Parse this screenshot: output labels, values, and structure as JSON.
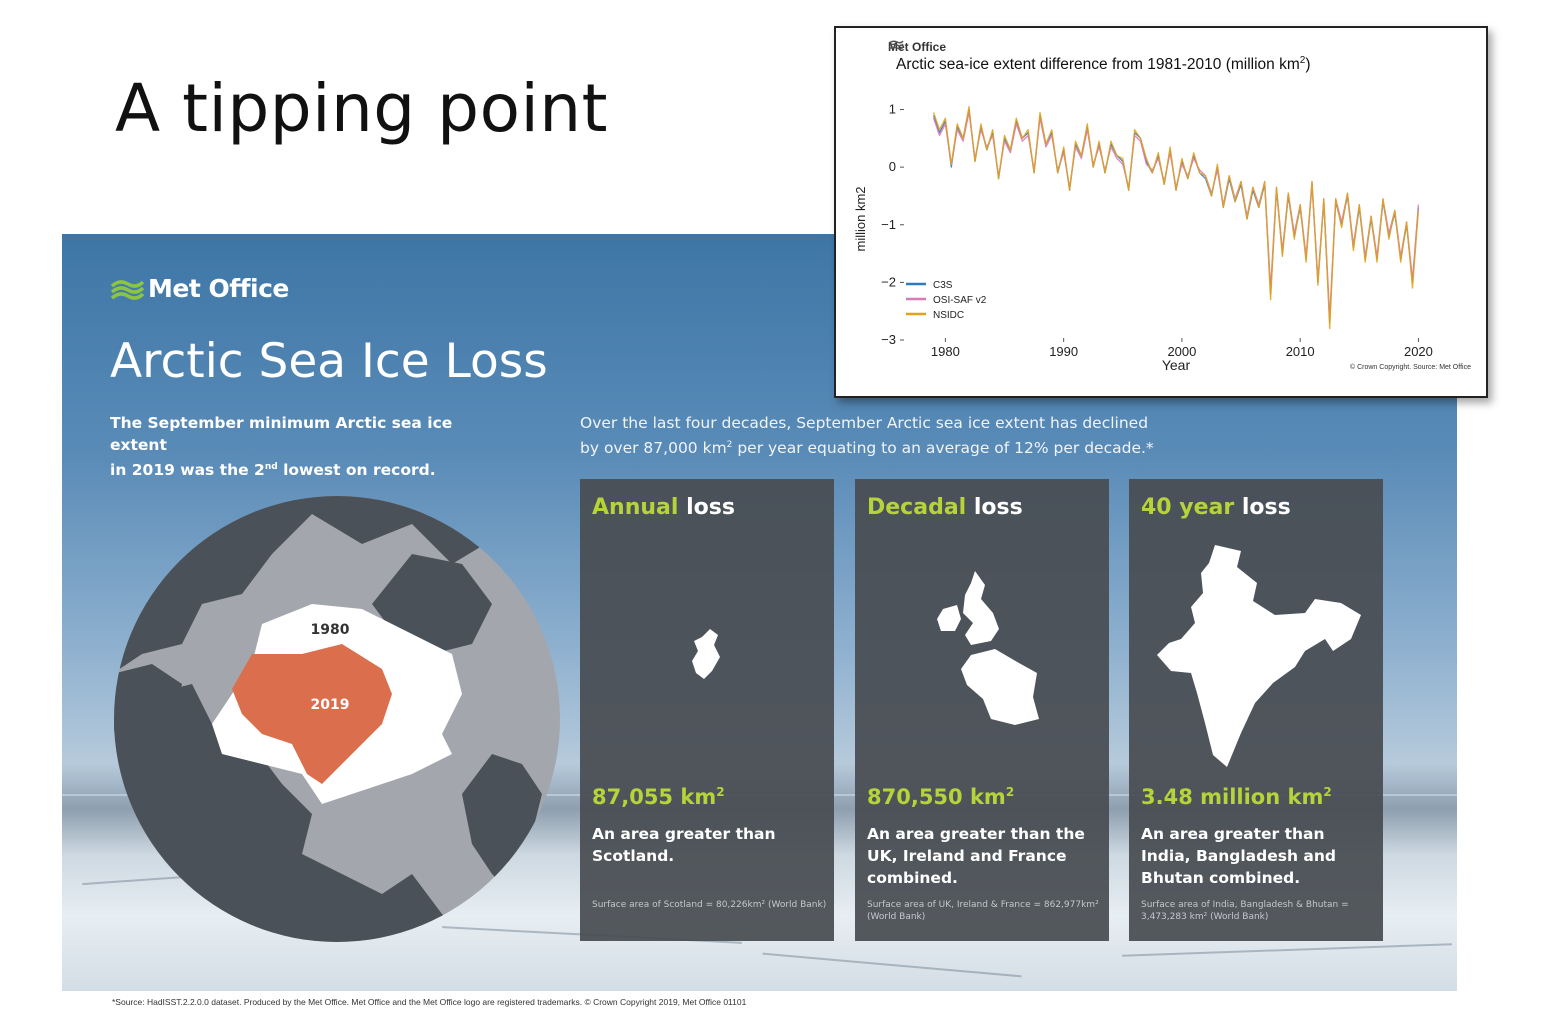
{
  "slide": {
    "title": "A tipping point"
  },
  "poster": {
    "logo_text": "Met Office",
    "title": "Arctic Sea Ice Loss",
    "lead_left_1": "The September minimum Arctic sea ice extent",
    "lead_left_2": "in 2019 was the 2",
    "lead_left_sup": "nd",
    "lead_left_3": " lowest on record.",
    "lead_right_1": "Over the last four decades, September Arctic sea ice extent has declined",
    "lead_right_2": "by over 87,000 km",
    "lead_right_sup": "2",
    "lead_right_3": " per year equating to an average of 12% per decade.*",
    "map": {
      "label_1980": "1980",
      "label_2019": "2019"
    },
    "cards": [
      {
        "head_hl": "Annual",
        "head_rest": " loss",
        "value": "87,055 km",
        "value_sup": "2",
        "desc": "An area greater than Scotland.",
        "note": "Surface area of Scotland = 80,226km² (World Bank)"
      },
      {
        "head_hl": "Decadal",
        "head_rest": " loss",
        "value": "870,550 km",
        "value_sup": "2",
        "desc": "An area greater than the UK, Ireland and France combined.",
        "note": "Surface area of UK, Ireland & France = 862,977km² (World Bank)"
      },
      {
        "head_hl": "40 year",
        "head_rest": " loss",
        "value": "3.48 million km",
        "value_sup": "2",
        "desc": "An area greater than India, Bangladesh and Bhutan combined.",
        "note": "Surface area of India, Bangladesh & Bhutan = 3,473,283 km² (World Bank)"
      }
    ],
    "footnote": "*Source: HadISST.2.2.0.0 dataset. Produced by the Met Office. Met Office and the Met Office logo are registered trademarks. © Crown Copyright 2019, Met Office  01101"
  },
  "chart_box": {
    "logo_text": "Met Office",
    "title": "Arctic sea-ice extent difference from 1981-2010 (million km",
    "title_sup": "2",
    "title_end": ")",
    "credit": "© Crown Copyright. Source: Met Office"
  },
  "chart_data": {
    "type": "line",
    "title": "Arctic sea-ice extent difference from 1981-2010 (million km2)",
    "xlabel": "Year",
    "ylabel": "million km2",
    "xlim": [
      1976.5,
      2022.5
    ],
    "ylim": [
      -3,
      1.2
    ],
    "xticks": [
      1980,
      1990,
      2000,
      2010,
      2020
    ],
    "yticks": [
      1,
      0,
      -1,
      -2,
      -3
    ],
    "ytick_labels": [
      "1",
      "0",
      "−1",
      "−2",
      "−3"
    ],
    "legend_position": "lower-left",
    "series": [
      {
        "name": "C3S",
        "color": "#2f7bbf",
        "x": [
          1979.0,
          1979.5,
          1980.0,
          1980.5,
          1981.0,
          1981.5,
          1982.0,
          1982.5,
          1983.0,
          1983.5,
          1984.0,
          1984.5,
          1985.0,
          1985.5,
          1986.0,
          1986.5,
          1987.0,
          1987.5,
          1988.0,
          1988.5,
          1989.0,
          1989.5,
          1990.0,
          1990.5,
          1991.0,
          1991.5,
          1992.0,
          1992.5,
          1993.0,
          1993.5,
          1994.0,
          1994.5,
          1995.0,
          1995.5,
          1996.0,
          1996.5,
          1997.0,
          1997.5,
          1998.0,
          1998.5,
          1999.0,
          1999.5,
          2000.0,
          2000.5,
          2001.0,
          2001.5,
          2002.0,
          2002.5,
          2003.0,
          2003.5,
          2004.0,
          2004.5,
          2005.0,
          2005.5,
          2006.0,
          2006.5,
          2007.0,
          2007.5,
          2008.0,
          2008.5,
          2009.0,
          2009.5,
          2010.0,
          2010.5,
          2011.0,
          2011.5,
          2012.0,
          2012.5,
          2013.0,
          2013.5,
          2014.0,
          2014.5,
          2015.0,
          2015.5,
          2016.0,
          2016.5,
          2017.0,
          2017.5,
          2018.0,
          2018.5,
          2019.0,
          2019.5,
          2020.0
        ],
        "y": [
          0.9,
          0.6,
          0.8,
          0.0,
          0.7,
          0.5,
          1.0,
          0.1,
          0.7,
          0.3,
          0.6,
          -0.2,
          0.5,
          0.3,
          0.8,
          0.5,
          0.6,
          -0.1,
          0.9,
          0.4,
          0.6,
          -0.1,
          0.3,
          -0.4,
          0.4,
          0.2,
          0.7,
          0.0,
          0.4,
          -0.1,
          0.4,
          0.2,
          0.1,
          -0.4,
          0.6,
          0.5,
          0.1,
          -0.1,
          0.2,
          -0.3,
          0.3,
          -0.4,
          0.1,
          -0.2,
          0.2,
          -0.1,
          -0.2,
          -0.5,
          0.0,
          -0.7,
          -0.2,
          -0.6,
          -0.3,
          -0.9,
          -0.4,
          -0.7,
          -0.3,
          -2.2,
          -0.4,
          -1.5,
          -0.5,
          -1.2,
          -0.7,
          -1.6,
          -0.3,
          -2.0,
          -0.6,
          -2.7,
          -0.6,
          -1.0,
          -0.5,
          -1.4,
          -0.7,
          -1.6,
          -0.9,
          -1.6,
          -0.6,
          -1.2,
          -0.8,
          -1.6,
          -1.0,
          -2.0,
          -0.7
        ]
      },
      {
        "name": "OSI-SAF v2",
        "color": "#d67bb5",
        "x": [
          1979.0,
          1979.5,
          1980.0,
          1980.5,
          1981.0,
          1981.5,
          1982.0,
          1982.5,
          1983.0,
          1983.5,
          1984.0,
          1984.5,
          1985.0,
          1985.5,
          1986.0,
          1986.5,
          1987.0,
          1987.5,
          1988.0,
          1988.5,
          1989.0,
          1989.5,
          1990.0,
          1990.5,
          1991.0,
          1991.5,
          1992.0,
          1992.5,
          1993.0,
          1993.5,
          1994.0,
          1994.5,
          1995.0,
          1995.5,
          1996.0,
          1996.5,
          1997.0,
          1997.5,
          1998.0,
          1998.5,
          1999.0,
          1999.5,
          2000.0,
          2000.5,
          2001.0,
          2001.5,
          2002.0,
          2002.5,
          2003.0,
          2003.5,
          2004.0,
          2004.5,
          2005.0,
          2005.5,
          2006.0,
          2006.5,
          2007.0,
          2007.5,
          2008.0,
          2008.5,
          2009.0,
          2009.5,
          2010.0,
          2010.5,
          2011.0,
          2011.5,
          2012.0,
          2012.5,
          2013.0,
          2013.5,
          2014.0,
          2014.5,
          2015.0,
          2015.5,
          2016.0,
          2016.5,
          2017.0,
          2017.5,
          2018.0,
          2018.5,
          2019.0,
          2019.5,
          2020.0
        ],
        "y": [
          0.85,
          0.55,
          0.75,
          0.05,
          0.65,
          0.45,
          0.95,
          0.15,
          0.65,
          0.35,
          0.55,
          -0.15,
          0.45,
          0.25,
          0.75,
          0.45,
          0.55,
          -0.05,
          0.85,
          0.35,
          0.55,
          -0.05,
          0.25,
          -0.35,
          0.35,
          0.15,
          0.65,
          0.05,
          0.35,
          -0.05,
          0.35,
          0.15,
          0.05,
          -0.35,
          0.55,
          0.45,
          0.05,
          -0.05,
          0.15,
          -0.25,
          0.25,
          -0.35,
          0.05,
          -0.15,
          0.15,
          -0.05,
          -0.15,
          -0.45,
          -0.05,
          -0.65,
          -0.15,
          -0.55,
          -0.25,
          -0.85,
          -0.35,
          -0.65,
          -0.25,
          -2.1,
          -0.35,
          -1.45,
          -0.45,
          -1.15,
          -0.65,
          -1.55,
          -0.25,
          -1.95,
          -0.55,
          -2.6,
          -0.55,
          -0.95,
          -0.45,
          -1.35,
          -0.65,
          -1.55,
          -0.85,
          -1.55,
          -0.55,
          -1.15,
          -0.75,
          -1.55,
          -0.95,
          -1.95,
          -0.65
        ]
      },
      {
        "name": "NSIDC",
        "color": "#e3a21c",
        "x": [
          1979.0,
          1979.5,
          1980.0,
          1980.5,
          1981.0,
          1981.5,
          1982.0,
          1982.5,
          1983.0,
          1983.5,
          1984.0,
          1984.5,
          1985.0,
          1985.5,
          1986.0,
          1986.5,
          1987.0,
          1987.5,
          1988.0,
          1988.5,
          1989.0,
          1989.5,
          1990.0,
          1990.5,
          1991.0,
          1991.5,
          1992.0,
          1992.5,
          1993.0,
          1993.5,
          1994.0,
          1994.5,
          1995.0,
          1995.5,
          1996.0,
          1996.5,
          1997.0,
          1997.5,
          1998.0,
          1998.5,
          1999.0,
          1999.5,
          2000.0,
          2000.5,
          2001.0,
          2001.5,
          2002.0,
          2002.5,
          2003.0,
          2003.5,
          2004.0,
          2004.5,
          2005.0,
          2005.5,
          2006.0,
          2006.5,
          2007.0,
          2007.5,
          2008.0,
          2008.5,
          2009.0,
          2009.5,
          2010.0,
          2010.5,
          2011.0,
          2011.5,
          2012.0,
          2012.5,
          2013.0,
          2013.5,
          2014.0,
          2014.5,
          2015.0,
          2015.5,
          2016.0,
          2016.5,
          2017.0,
          2017.5,
          2018.0,
          2018.5,
          2019.0,
          2019.5,
          2020.0
        ],
        "y": [
          0.95,
          0.65,
          0.85,
          0.05,
          0.75,
          0.5,
          1.05,
          0.1,
          0.75,
          0.3,
          0.65,
          -0.2,
          0.55,
          0.3,
          0.85,
          0.5,
          0.65,
          -0.1,
          0.95,
          0.4,
          0.65,
          -0.1,
          0.35,
          -0.4,
          0.45,
          0.2,
          0.75,
          0.0,
          0.45,
          -0.1,
          0.45,
          0.2,
          0.15,
          -0.4,
          0.65,
          0.5,
          0.15,
          -0.1,
          0.25,
          -0.3,
          0.35,
          -0.4,
          0.15,
          -0.2,
          0.25,
          -0.1,
          -0.15,
          -0.5,
          0.05,
          -0.7,
          -0.15,
          -0.6,
          -0.25,
          -0.9,
          -0.35,
          -0.7,
          -0.25,
          -2.3,
          -0.35,
          -1.55,
          -0.45,
          -1.25,
          -0.65,
          -1.65,
          -0.25,
          -2.05,
          -0.55,
          -2.8,
          -0.55,
          -1.05,
          -0.45,
          -1.45,
          -0.65,
          -1.65,
          -0.85,
          -1.65,
          -0.55,
          -1.25,
          -0.75,
          -1.65,
          -0.95,
          -2.1,
          -0.75
        ]
      }
    ]
  }
}
